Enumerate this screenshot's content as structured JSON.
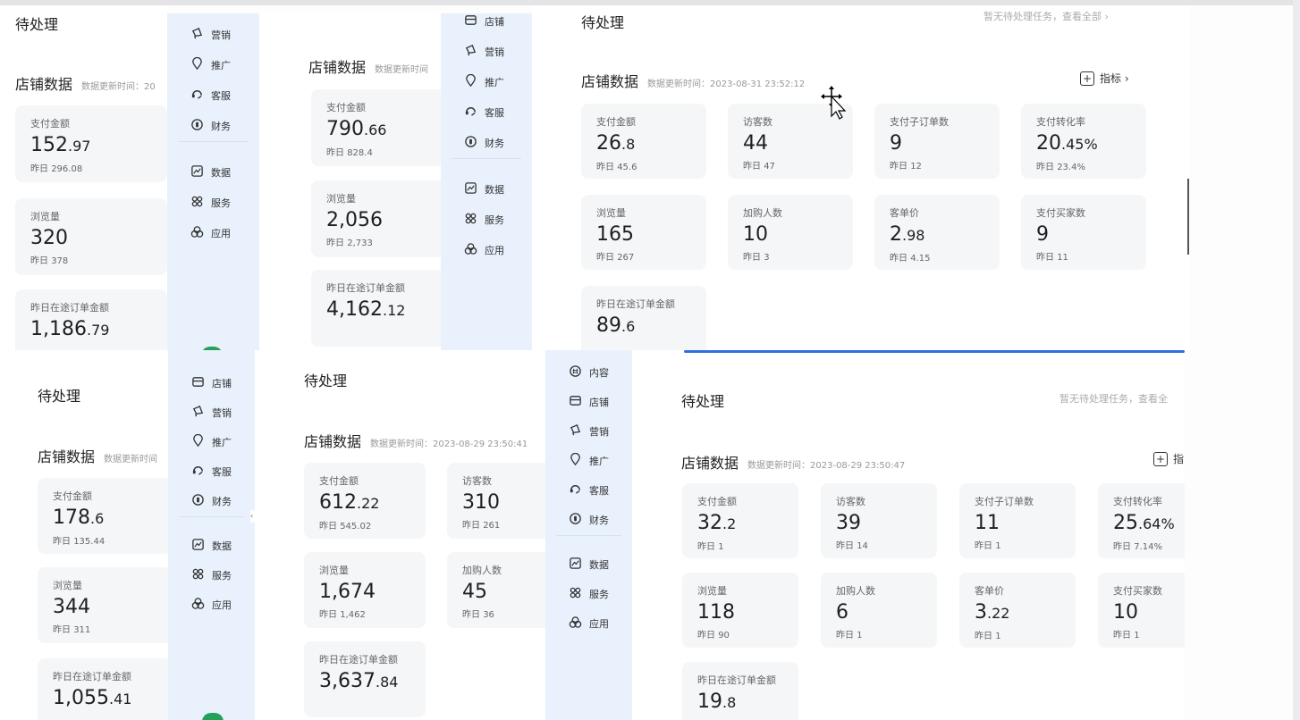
{
  "colors": {
    "sidebar_bg": "#e9f1fc",
    "card_bg": "#f5f6f8",
    "accent": "#2f6fe0",
    "badge": "#23a15a"
  },
  "icons": {
    "店铺": "store-icon",
    "营销": "megaphone-icon",
    "推广": "location-pin-icon",
    "客服": "headset-icon",
    "财务": "finance-coin-icon",
    "数据": "chart-icon",
    "服务": "grid-services-icon",
    "应用": "apps-icon",
    "内容": "content-icon"
  },
  "sidebars": [
    {
      "items": [
        "营销",
        "推广",
        "客服",
        "财务",
        "数据",
        "服务",
        "应用"
      ]
    },
    {
      "items": [
        "店铺",
        "营销",
        "推广",
        "客服",
        "财务",
        "数据",
        "服务",
        "应用"
      ]
    },
    {
      "items": [
        "店铺",
        "营销",
        "推广",
        "客服",
        "财务",
        "数据",
        "服务",
        "应用"
      ]
    },
    {
      "items": [
        "内容",
        "店铺",
        "营销",
        "推广",
        "客服",
        "财务",
        "数据",
        "服务",
        "应用"
      ]
    }
  ],
  "panels": [
    {
      "pending_title": "待处理",
      "store_title": "店铺数据",
      "update_time": "数据更新时间：20",
      "cards": [
        {
          "label": "支付金额",
          "value": "152.97",
          "yesterday_label": "昨日",
          "yesterday": "296.08"
        },
        {
          "label": "浏览量",
          "value": "320",
          "yesterday_label": "昨日",
          "yesterday": "378"
        },
        {
          "label": "昨日在途订单金额",
          "value": "1,186.79"
        }
      ]
    },
    {
      "store_title": "店铺数据",
      "update_time": "数据更新时间",
      "cards": [
        {
          "label": "支付金额",
          "value": "790.66",
          "yesterday_label": "昨日",
          "yesterday": "828.4"
        },
        {
          "label": "浏览量",
          "value": "2,056",
          "yesterday_label": "昨日",
          "yesterday": "2,733"
        },
        {
          "label": "昨日在途订单金额",
          "value": "4,162.12"
        }
      ]
    },
    {
      "pending_title": "待处理",
      "pending_hint": "暂无待处理任务，查看全部 ›",
      "store_title": "店铺数据",
      "update_time": "数据更新时间：2023-08-31 23:52:12",
      "metric_label": "指标 ›",
      "cards": [
        {
          "label": "支付金额",
          "value": "26.8",
          "yesterday_label": "昨日",
          "yesterday": "45.6"
        },
        {
          "label": "访客数",
          "value": "44",
          "yesterday_label": "昨日",
          "yesterday": "47"
        },
        {
          "label": "支付子订单数",
          "value": "9",
          "yesterday_label": "昨日",
          "yesterday": "12"
        },
        {
          "label": "支付转化率",
          "value": "20.45%",
          "yesterday_label": "昨日",
          "yesterday": "23.4%"
        },
        {
          "label": "浏览量",
          "value": "165",
          "yesterday_label": "昨日",
          "yesterday": "267"
        },
        {
          "label": "加购人数",
          "value": "10",
          "yesterday_label": "昨日",
          "yesterday": "3"
        },
        {
          "label": "客单价",
          "value": "2.98",
          "yesterday_label": "昨日",
          "yesterday": "4.15"
        },
        {
          "label": "支付买家数",
          "value": "9",
          "yesterday_label": "昨日",
          "yesterday": "11"
        },
        {
          "label": "昨日在途订单金额",
          "value": "89.6"
        }
      ]
    },
    {
      "pending_title": "待处理",
      "store_title": "店铺数据",
      "update_time": "数据更新时间",
      "cards": [
        {
          "label": "支付金额",
          "value": "178.6",
          "yesterday_label": "昨日",
          "yesterday": "135.44"
        },
        {
          "label": "浏览量",
          "value": "344",
          "yesterday_label": "昨日",
          "yesterday": "311"
        },
        {
          "label": "昨日在途订单金额",
          "value": "1,055.41"
        }
      ]
    },
    {
      "pending_title": "待处理",
      "store_title": "店铺数据",
      "update_time": "数据更新时间：2023-08-29 23:50:41",
      "cards": [
        {
          "label": "支付金额",
          "value": "612.22",
          "yesterday_label": "昨日",
          "yesterday": "545.02"
        },
        {
          "label": "访客数",
          "value": "310",
          "yesterday_label": "昨日",
          "yesterday": "261"
        },
        {
          "label": "浏览量",
          "value": "1,674",
          "yesterday_label": "昨日",
          "yesterday": "1,462"
        },
        {
          "label": "加购人数",
          "value": "45",
          "yesterday_label": "昨日",
          "yesterday": "36"
        },
        {
          "label": "昨日在途订单金额",
          "value": "3,637.84"
        }
      ]
    },
    {
      "pending_title": "待处理",
      "pending_hint": "暂无待处理任务，查看全",
      "store_title": "店铺数据",
      "update_time": "数据更新时间：2023-08-29 23:50:47",
      "metric_label": "指",
      "cards": [
        {
          "label": "支付金额",
          "value": "32.2",
          "yesterday_label": "昨日",
          "yesterday": "1"
        },
        {
          "label": "访客数",
          "value": "39",
          "yesterday_label": "昨日",
          "yesterday": "14"
        },
        {
          "label": "支付子订单数",
          "value": "11",
          "yesterday_label": "昨日",
          "yesterday": "1"
        },
        {
          "label": "支付转化率",
          "value": "25.64%",
          "yesterday_label": "昨日",
          "yesterday": "7.14%"
        },
        {
          "label": "浏览量",
          "value": "118",
          "yesterday_label": "昨日",
          "yesterday": "90"
        },
        {
          "label": "加购人数",
          "value": "6",
          "yesterday_label": "昨日",
          "yesterday": "1"
        },
        {
          "label": "客单价",
          "value": "3.22",
          "yesterday_label": "昨日",
          "yesterday": "1"
        },
        {
          "label": "支付买家数",
          "value": "10",
          "yesterday_label": "昨日",
          "yesterday": "1"
        },
        {
          "label": "昨日在途订单金额",
          "value": "19.8"
        }
      ]
    }
  ]
}
